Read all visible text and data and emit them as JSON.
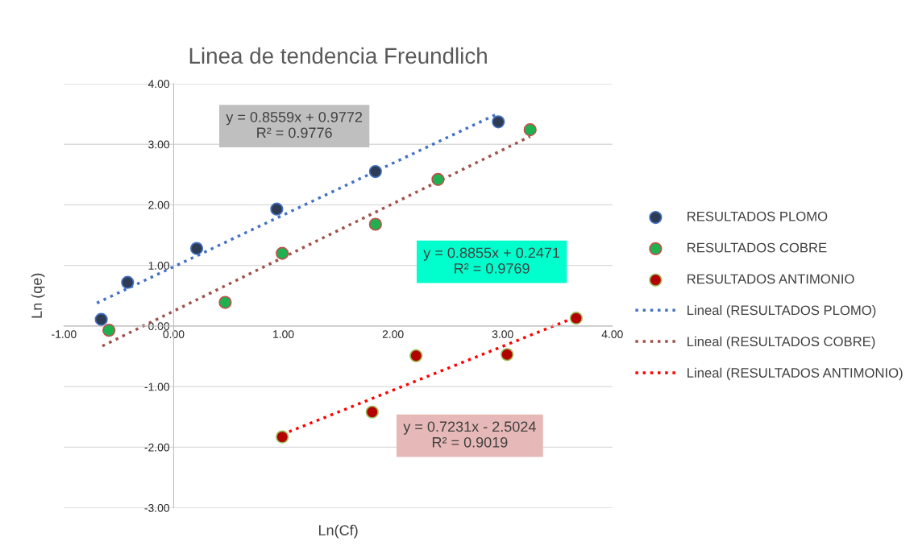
{
  "chart_data": {
    "type": "scatter",
    "title": "Linea de tendencia Freundlich",
    "xlabel": "Ln(Cf)",
    "ylabel": "Ln (qe)",
    "xlim": [
      -1,
      4
    ],
    "ylim": [
      -3,
      4
    ],
    "xticks": [
      {
        "value": -1,
        "label": "-1.00"
      },
      {
        "value": 0,
        "label": "0.00"
      },
      {
        "value": 1,
        "label": "1.00"
      },
      {
        "value": 2,
        "label": "2.00"
      },
      {
        "value": 3,
        "label": "3.00"
      },
      {
        "value": 4,
        "label": "4.00"
      }
    ],
    "yticks": [
      {
        "value": -3,
        "label": "-3.00"
      },
      {
        "value": -2,
        "label": "-2.00"
      },
      {
        "value": -1,
        "label": "-1.00"
      },
      {
        "value": 0,
        "label": "0.00"
      },
      {
        "value": 1,
        "label": "1.00"
      },
      {
        "value": 2,
        "label": "2.00"
      },
      {
        "value": 3,
        "label": "3.00"
      },
      {
        "value": 4,
        "label": "4.00"
      }
    ],
    "grid": "y",
    "legend": "right",
    "marker": "circle",
    "series": [
      {
        "name": "RESULTADOS PLOMO",
        "color": "#2e3b55",
        "x": [
          -0.66,
          -0.42,
          0.21,
          0.94,
          1.84,
          2.96
        ],
        "values": [
          0.11,
          0.72,
          1.28,
          1.93,
          2.55,
          3.37
        ]
      },
      {
        "name": "RESULTADOS COBRE",
        "color": "#1fb04f",
        "x": [
          -0.59,
          0.47,
          0.99,
          1.84,
          2.41,
          3.25
        ],
        "values": [
          -0.07,
          0.39,
          1.2,
          1.68,
          2.42,
          3.24
        ]
      },
      {
        "name": "RESULTADOS ANTIMONIO",
        "color": "#b30000",
        "x": [
          0.99,
          1.81,
          2.21,
          3.04,
          3.67
        ],
        "values": [
          -1.83,
          -1.42,
          -0.49,
          -0.47,
          0.13
        ]
      },
      {
        "name": "Lineal (RESULTADOS PLOMO)",
        "type": "line",
        "line_style": "dotted",
        "marker": "none",
        "color": "#4472c4",
        "x": [
          -0.7,
          2.96
        ],
        "values": [
          0.38,
          3.51
        ]
      },
      {
        "name": "Lineal (RESULTADOS COBRE)",
        "type": "line",
        "line_style": "dotted",
        "marker": "none",
        "color": "#a0524a",
        "x": [
          -0.65,
          3.25
        ],
        "values": [
          -0.33,
          3.13
        ]
      },
      {
        "name": "Lineal (RESULTADOS ANTIMONIO)",
        "type": "line",
        "line_style": "dotted",
        "marker": "none",
        "color": "#ff0000",
        "x": [
          0.99,
          3.67
        ],
        "values": [
          -1.79,
          0.15
        ]
      }
    ],
    "annotations": [
      "y = 0.8559x + 0.9772\nR² = 0.9776",
      "y = 0.8855x + 0.2471\nR² = 0.9769",
      "y = 0.7231x - 2.5024\nR² = 0.9019"
    ]
  }
}
